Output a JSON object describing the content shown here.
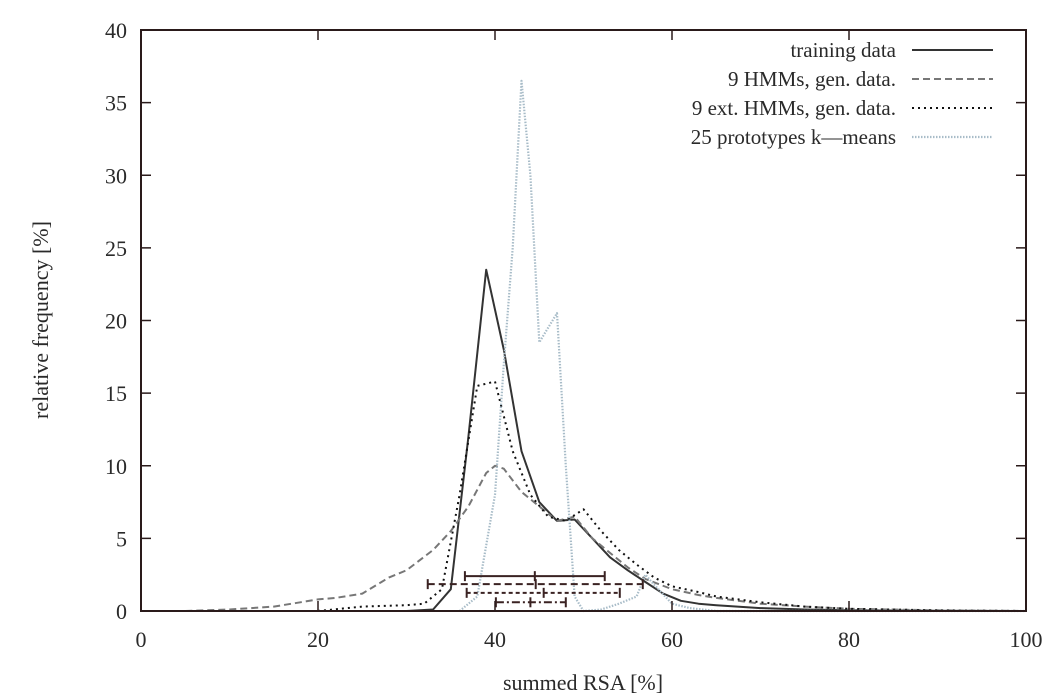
{
  "chart_data": {
    "type": "line",
    "title": "",
    "xlabel": "summed RSA [%]",
    "ylabel": "relative frequency [%]",
    "xlim": [
      0,
      100
    ],
    "ylim": [
      0,
      40
    ],
    "xticks": [
      0,
      20,
      40,
      60,
      80,
      100
    ],
    "yticks": [
      0,
      5,
      10,
      15,
      20,
      25,
      30,
      35,
      40
    ],
    "grid": false,
    "legend_position": "upper right",
    "series": [
      {
        "name": "training data",
        "style": "solid",
        "color": "#333333",
        "x": [
          30,
          33,
          35,
          37,
          39,
          41,
          43,
          45,
          47,
          49,
          51,
          53,
          55,
          57,
          59,
          61,
          63,
          65,
          70,
          75,
          80,
          90,
          100
        ],
        "y": [
          0,
          0.1,
          1.5,
          12,
          23.5,
          18,
          11,
          7.5,
          6.2,
          6.3,
          5,
          3.7,
          2.8,
          2,
          1.2,
          0.7,
          0.5,
          0.4,
          0.2,
          0.1,
          0.05,
          0.02,
          0
        ]
      },
      {
        "name": "9 HMMs, gen. data.",
        "style": "dashed",
        "color": "#777777",
        "x": [
          5,
          10,
          15,
          18,
          20,
          22,
          25,
          28,
          30,
          33,
          35,
          37,
          39,
          40,
          41,
          43,
          45,
          47,
          49,
          51,
          53,
          55,
          57,
          60,
          63,
          65,
          70,
          75,
          80,
          90,
          100
        ],
        "y": [
          0,
          0.1,
          0.3,
          0.6,
          0.8,
          0.9,
          1.2,
          2.3,
          2.8,
          4.2,
          5.5,
          7.2,
          9.5,
          10,
          9.8,
          8.2,
          7.2,
          6.2,
          6.5,
          5,
          4,
          3,
          2.2,
          1.5,
          1.1,
          0.9,
          0.5,
          0.3,
          0.15,
          0.05,
          0
        ]
      },
      {
        "name": "9 ext. HMMs, gen. data.",
        "style": "dotted",
        "color": "#111111",
        "x": [
          20,
          25,
          30,
          32,
          34,
          36,
          38,
          40,
          42,
          44,
          46,
          48,
          50,
          52,
          54,
          56,
          58,
          60,
          63,
          65,
          70,
          75,
          80,
          90,
          100
        ],
        "y": [
          0,
          0.3,
          0.4,
          0.5,
          1.5,
          8,
          15.5,
          15.8,
          11,
          8,
          6.5,
          6.2,
          7,
          5.5,
          4.2,
          3.2,
          2.3,
          1.7,
          1.3,
          1,
          0.6,
          0.3,
          0.15,
          0.05,
          0
        ]
      },
      {
        "name": "25 prototypes k-means",
        "style": "dotted-light",
        "color": "#a8bcc8",
        "x": [
          36,
          38,
          40,
          41,
          42,
          43,
          44,
          45,
          46,
          47,
          48,
          49,
          50,
          52,
          54,
          56,
          57,
          58,
          60,
          62,
          65,
          70,
          100
        ],
        "y": [
          0,
          1,
          8,
          17,
          25,
          36.5,
          30,
          18.5,
          19.5,
          20.5,
          10,
          1,
          0,
          0.1,
          0.5,
          1,
          2.5,
          1.8,
          0.5,
          0.2,
          0,
          0,
          0
        ]
      }
    ],
    "error_bars": [
      {
        "series": "training data",
        "style": "solid",
        "y_pos": 2.4,
        "low": 36.6,
        "mean": 44.5,
        "high": 52.4
      },
      {
        "series": "9 HMMs, gen. data.",
        "style": "dashed",
        "y_pos": 1.85,
        "low": 32.4,
        "mean": 44.6,
        "high": 56.7
      },
      {
        "series": "9 ext. HMMs, gen. data.",
        "style": "dotted",
        "y_pos": 1.25,
        "low": 36.8,
        "mean": 45.5,
        "high": 54.1
      },
      {
        "series": "25 prototypes k-means",
        "style": "dash-dot",
        "y_pos": 0.6,
        "low": 40.1,
        "mean": 44.0,
        "high": 48.0
      }
    ]
  }
}
